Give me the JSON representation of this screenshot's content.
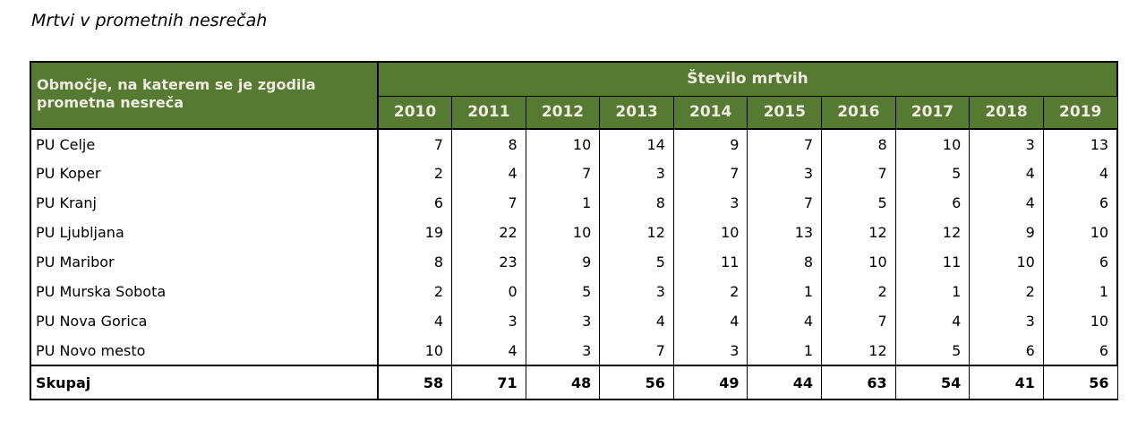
{
  "title": "Mrtvi v prometnih nesrečah",
  "colors": {
    "header_background": "#567A31",
    "header_text": "#EEECE1",
    "border": "#000000",
    "body_text": "#000000"
  },
  "table": {
    "corner_header": "Območje, na katerem se je zgodila prometna nesreča",
    "group_header": "Število mrtvih",
    "years": [
      "2010",
      "2011",
      "2012",
      "2013",
      "2014",
      "2015",
      "2016",
      "2017",
      "2018",
      "2019"
    ],
    "rows": [
      {
        "label": "PU Celje",
        "values": [
          7,
          8,
          10,
          14,
          9,
          7,
          8,
          10,
          3,
          13
        ]
      },
      {
        "label": "PU Koper",
        "values": [
          2,
          4,
          7,
          3,
          7,
          3,
          7,
          5,
          4,
          4
        ]
      },
      {
        "label": "PU Kranj",
        "values": [
          6,
          7,
          1,
          8,
          3,
          7,
          5,
          6,
          4,
          6
        ]
      },
      {
        "label": "PU Ljubljana",
        "values": [
          19,
          22,
          10,
          12,
          10,
          13,
          12,
          12,
          9,
          10
        ]
      },
      {
        "label": "PU Maribor",
        "values": [
          8,
          23,
          9,
          5,
          11,
          8,
          10,
          11,
          10,
          6
        ]
      },
      {
        "label": "PU Murska Sobota",
        "values": [
          2,
          0,
          5,
          3,
          2,
          1,
          2,
          1,
          2,
          1
        ]
      },
      {
        "label": "PU Nova Gorica",
        "values": [
          4,
          3,
          3,
          4,
          4,
          4,
          7,
          4,
          3,
          10
        ]
      },
      {
        "label": "PU Novo mesto",
        "values": [
          10,
          4,
          3,
          7,
          3,
          1,
          12,
          5,
          6,
          6
        ]
      }
    ],
    "total": {
      "label": "Skupaj",
      "values": [
        58,
        71,
        48,
        56,
        49,
        44,
        63,
        54,
        41,
        56
      ]
    }
  },
  "chart_data": {
    "type": "table",
    "title": "Mrtvi v prometnih nesrečah",
    "categories": [
      "2010",
      "2011",
      "2012",
      "2013",
      "2014",
      "2015",
      "2016",
      "2017",
      "2018",
      "2019"
    ],
    "series": [
      {
        "name": "PU Celje",
        "values": [
          7,
          8,
          10,
          14,
          9,
          7,
          8,
          10,
          3,
          13
        ]
      },
      {
        "name": "PU Koper",
        "values": [
          2,
          4,
          7,
          3,
          7,
          3,
          7,
          5,
          4,
          4
        ]
      },
      {
        "name": "PU Kranj",
        "values": [
          6,
          7,
          1,
          8,
          3,
          7,
          5,
          6,
          4,
          6
        ]
      },
      {
        "name": "PU Ljubljana",
        "values": [
          19,
          22,
          10,
          12,
          10,
          13,
          12,
          12,
          9,
          10
        ]
      },
      {
        "name": "PU Maribor",
        "values": [
          8,
          23,
          9,
          5,
          11,
          8,
          10,
          11,
          10,
          6
        ]
      },
      {
        "name": "PU Murska Sobota",
        "values": [
          2,
          0,
          5,
          3,
          2,
          1,
          2,
          1,
          2,
          1
        ]
      },
      {
        "name": "PU Nova Gorica",
        "values": [
          4,
          3,
          3,
          4,
          4,
          4,
          7,
          4,
          3,
          10
        ]
      },
      {
        "name": "PU Novo mesto",
        "values": [
          10,
          4,
          3,
          7,
          3,
          1,
          12,
          5,
          6,
          6
        ]
      },
      {
        "name": "Skupaj",
        "values": [
          58,
          71,
          48,
          56,
          49,
          44,
          63,
          54,
          41,
          56
        ]
      }
    ]
  }
}
